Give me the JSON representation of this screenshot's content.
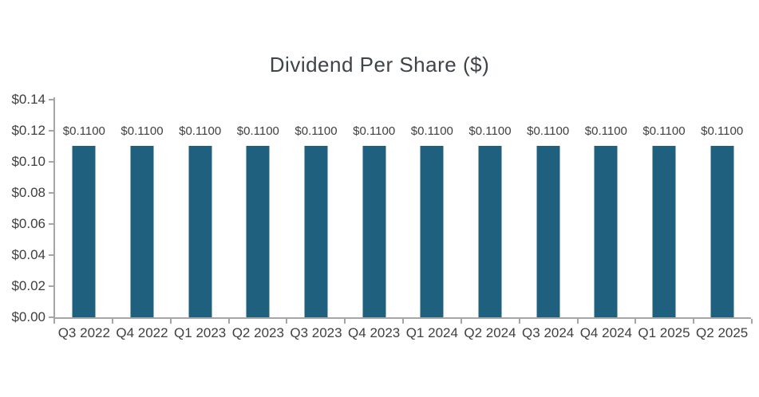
{
  "colors": {
    "bar": "#20607F",
    "axis_line": "#A6A6A6",
    "title_text": "#3E4449",
    "label_text": "#404040",
    "background": "#FFFFFF"
  },
  "chart_data": {
    "type": "bar",
    "title": "Dividend Per Share ($)",
    "xlabel": "",
    "ylabel": "",
    "categories": [
      "Q3 2022",
      "Q4 2022",
      "Q1 2023",
      "Q2 2023",
      "Q3 2023",
      "Q4 2023",
      "Q1 2024",
      "Q2 2024",
      "Q3 2024",
      "Q4 2024",
      "Q1 2025",
      "Q2 2025"
    ],
    "values": [
      0.11,
      0.11,
      0.11,
      0.11,
      0.11,
      0.11,
      0.11,
      0.11,
      0.11,
      0.11,
      0.11,
      0.11
    ],
    "bar_labels": [
      "$0.1100",
      "$0.1100",
      "$0.1100",
      "$0.1100",
      "$0.1100",
      "$0.1100",
      "$0.1100",
      "$0.1100",
      "$0.1100",
      "$0.1100",
      "$0.1100",
      "$0.1100"
    ],
    "y_tick_labels": [
      "$0.14",
      "$0.12",
      "$0.10",
      "$0.08",
      "$0.06",
      "$0.04",
      "$0.02",
      "$0.00"
    ],
    "y_tick_values": [
      0.14,
      0.12,
      0.1,
      0.08,
      0.06,
      0.04,
      0.02,
      0.0
    ],
    "ylim": [
      0,
      0.14
    ],
    "grid": false,
    "legend_position": "none"
  }
}
